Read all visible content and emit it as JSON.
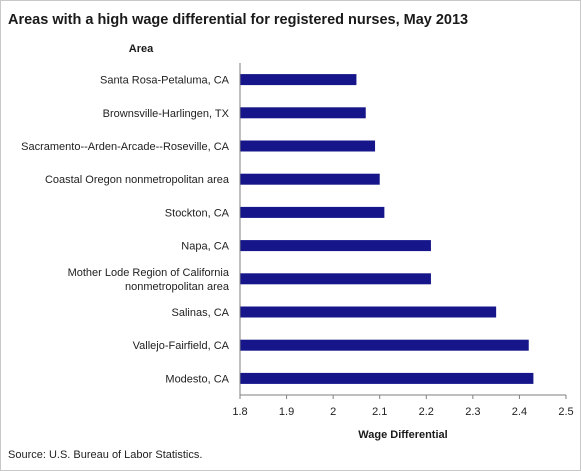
{
  "chart_data": {
    "type": "bar",
    "orientation": "horizontal",
    "title": "Areas with a high wage differential for registered nurses, May 2013",
    "category_axis_label": "Area",
    "value_axis_label": "Wage  Differential",
    "categories": [
      "Santa Rosa-Petaluma, CA",
      "Brownsville-Harlingen, TX",
      "Sacramento--Arden-Arcade--Roseville, CA",
      "Coastal Oregon nonmetropolitan area",
      "Stockton, CA",
      "Napa, CA",
      "Mother Lode Region of California nonmetropolitan area",
      "Salinas, CA",
      "Vallejo-Fairfield, CA",
      "Modesto, CA"
    ],
    "values": [
      2.05,
      2.07,
      2.09,
      2.1,
      2.11,
      2.21,
      2.21,
      2.35,
      2.42,
      2.43
    ],
    "xlim": [
      1.8,
      2.5
    ],
    "ticks": [
      "1.8",
      "1.9",
      "2",
      "2.1",
      "2.2",
      "2.3",
      "2.4",
      "2.5"
    ],
    "bar_color": "#16168a",
    "grid": false,
    "legend": "none",
    "source": "Source: U.S. Bureau of Labor Statistics."
  }
}
